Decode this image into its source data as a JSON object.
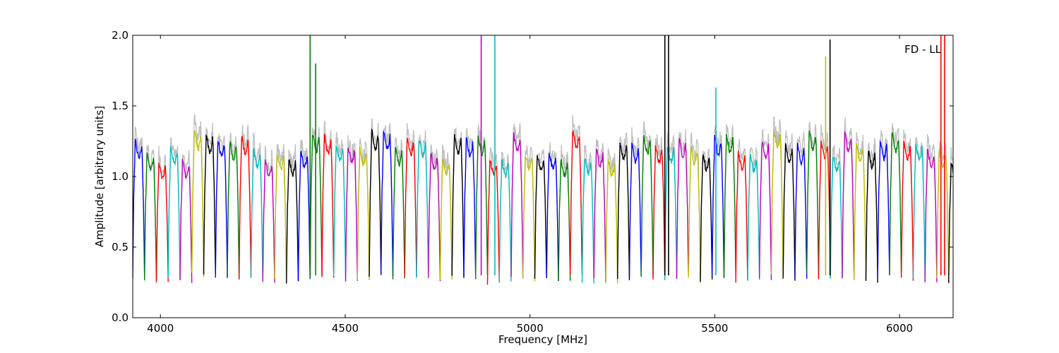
{
  "chart_data": {
    "type": "line",
    "xlabel": "Frequency [MHz]",
    "ylabel": "Amplitude [arbitrary units]",
    "annotation": "FD - LL",
    "annotation_position": "top-right",
    "xlim": [
      3925,
      6145
    ],
    "ylim": [
      0.0,
      2.0
    ],
    "x_ticks": [
      4000,
      4500,
      5000,
      5500,
      6000
    ],
    "x_tick_labels": [
      "4000",
      "4500",
      "5000",
      "5500",
      "6000"
    ],
    "y_ticks": [
      0.0,
      0.5,
      1.0,
      1.5,
      2.0
    ],
    "y_tick_labels": [
      "0.0",
      "0.5",
      "1.0",
      "1.5",
      "2.0"
    ],
    "grid": false,
    "channel_width_mhz": 32,
    "band_start_mhz": 3925,
    "band_end_mhz": 6145,
    "background_series_color": "#bfbfbf",
    "channel_color_cycle": [
      "#0000ff",
      "#008000",
      "#ff0000",
      "#00bfbf",
      "#bf00bf",
      "#bfbf00",
      "#000000"
    ],
    "spikes": [
      {
        "x": 4405,
        "y": 2.0,
        "color": "#008000"
      },
      {
        "x": 4420,
        "y": 1.8,
        "color": "#008000"
      },
      {
        "x": 4868,
        "y": 2.0,
        "color": "#bf00bf"
      },
      {
        "x": 4905,
        "y": 2.0,
        "color": "#00bfbf"
      },
      {
        "x": 5365,
        "y": 2.0,
        "color": "#000000"
      },
      {
        "x": 5375,
        "y": 2.0,
        "color": "#000000"
      },
      {
        "x": 5503,
        "y": 1.63,
        "color": "#00bfbf"
      },
      {
        "x": 5800,
        "y": 1.85,
        "color": "#bfbf00"
      },
      {
        "x": 5812,
        "y": 1.97,
        "color": "#000000"
      },
      {
        "x": 6112,
        "y": 2.0,
        "color": "#ff0000"
      },
      {
        "x": 6122,
        "y": 2.0,
        "color": "#ff0000"
      }
    ]
  }
}
